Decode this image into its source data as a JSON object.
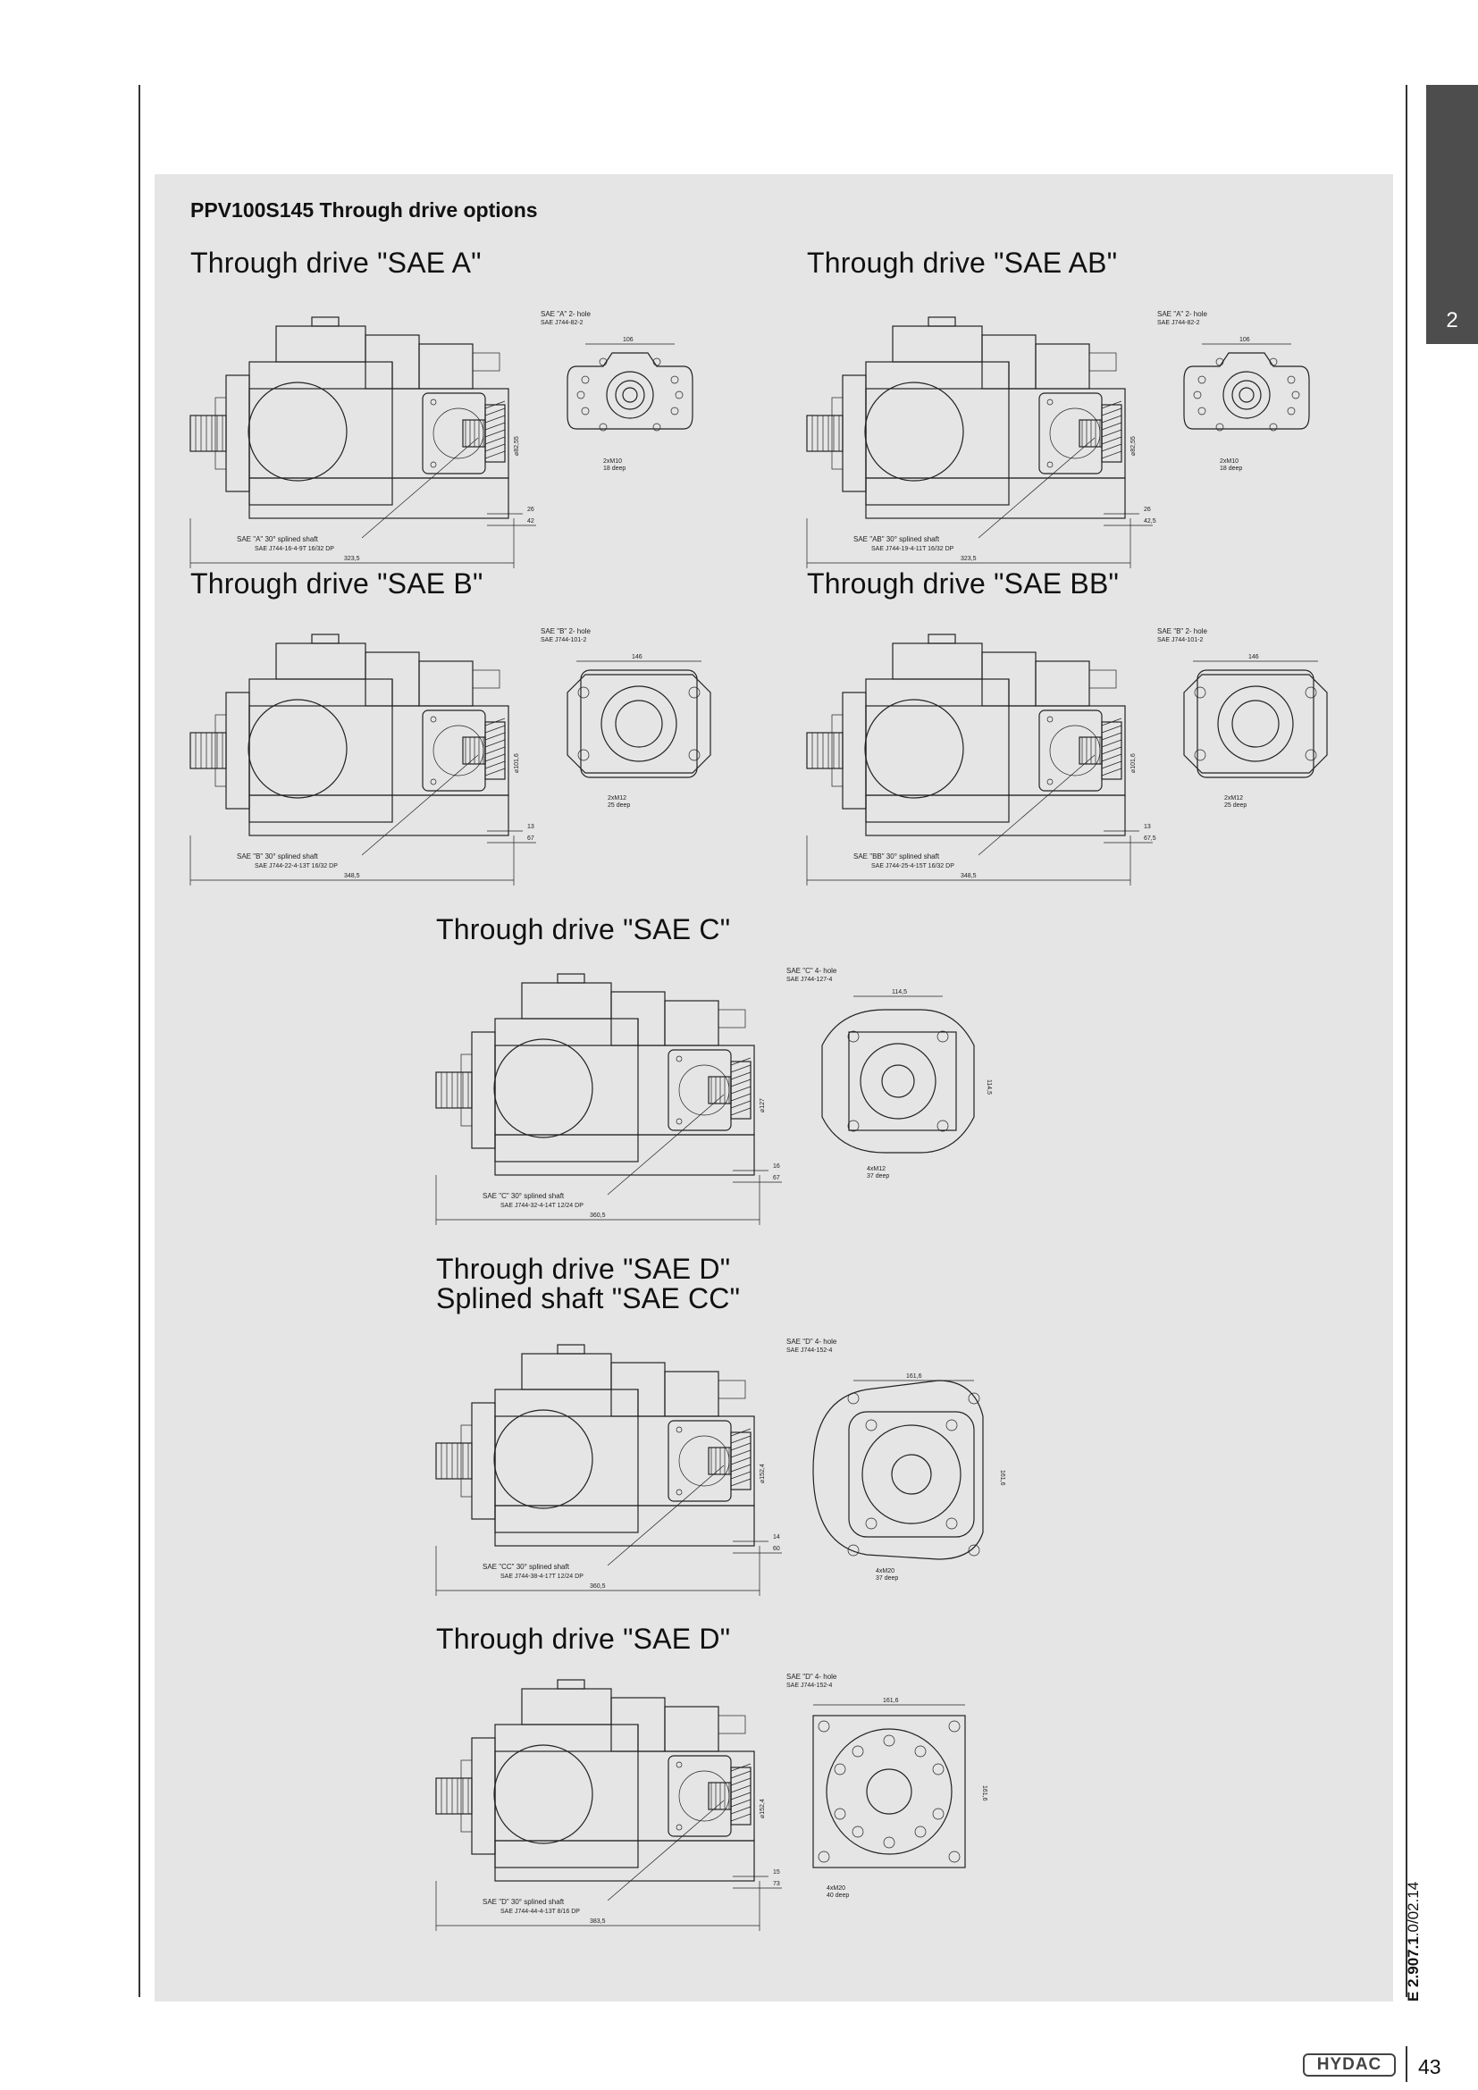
{
  "header": {
    "title": "PPV100S145 Through drive options"
  },
  "side_tab": {
    "chapter": "2"
  },
  "sections": [
    {
      "title": "Through drive \"SAE A\"",
      "hole_label": "SAE \"A\" 2- hole",
      "hole_std": "SAE J744-82-2",
      "flange_width": "106",
      "bolt": "2xM10",
      "bolt_depth": "18 deep",
      "pilot": "⌀82,55",
      "dim1": "26",
      "dim2": "42",
      "shaft_label": "SAE \"A\" 30° splined shaft",
      "shaft_std": "SAE J744-16-4-9T 16/32 DP",
      "overall": "323,5"
    },
    {
      "title": "Through drive \"SAE AB\"",
      "hole_label": "SAE \"A\" 2- hole",
      "hole_std": "SAE J744-82-2",
      "flange_width": "106",
      "bolt": "2xM10",
      "bolt_depth": "18 deep",
      "pilot": "⌀82,55",
      "dim1": "26",
      "dim2": "42,5",
      "shaft_label": "SAE \"AB\" 30° splined shaft",
      "shaft_std": "SAE J744-19-4-11T 16/32 DP",
      "overall": "323,5"
    },
    {
      "title": "Through drive \"SAE B\"",
      "hole_label": "SAE \"B\" 2- hole",
      "hole_std": "SAE J744-101-2",
      "flange_width": "146",
      "bolt": "2xM12",
      "bolt_depth": "25 deep",
      "pilot": "⌀101,6",
      "dim1": "13",
      "dim2": "67",
      "shaft_label": "SAE \"B\" 30° splined shaft",
      "shaft_std": "SAE J744-22-4-13T 16/32 DP",
      "overall": "348,5"
    },
    {
      "title": "Through drive \"SAE BB\"",
      "hole_label": "SAE \"B\" 2- hole",
      "hole_std": "SAE J744-101-2",
      "flange_width": "146",
      "bolt": "2xM12",
      "bolt_depth": "25 deep",
      "pilot": "⌀101,6",
      "dim1": "13",
      "dim2": "67,5",
      "shaft_label": "SAE \"BB\" 30° splined shaft",
      "shaft_std": "SAE J744-25-4-15T 16/32 DP",
      "overall": "348,5"
    },
    {
      "title": "Through drive \"SAE C\"",
      "hole_label": "SAE \"C\" 4- hole",
      "hole_std": "SAE J744-127-4",
      "flange_width": "114,5",
      "flange_height": "114,5",
      "bolt": "4xM12",
      "bolt_depth": "37 deep",
      "pilot": "⌀127",
      "dim1": "16",
      "dim2": "67",
      "shaft_label": "SAE \"C\" 30° splined shaft",
      "shaft_std": "SAE J744-32-4-14T 12/24 DP",
      "overall": "360,5"
    },
    {
      "title": "Through drive \"SAE D\"",
      "title2": "Splined shaft \"SAE CC\"",
      "hole_label": "SAE \"D\" 4- hole",
      "hole_std": "SAE J744-152-4",
      "flange_width": "161,6",
      "flange_height": "161,6",
      "bolt": "4xM20",
      "bolt_depth": "37 deep",
      "pilot": "⌀152,4",
      "dim1": "14",
      "dim2": "60",
      "shaft_label": "SAE \"CC\" 30° splined shaft",
      "shaft_std": "SAE J744-38-4-17T 12/24 DP",
      "overall": "360,5"
    },
    {
      "title": "Through drive \"SAE D\"",
      "hole_label": "SAE \"D\" 4- hole",
      "hole_std": "SAE J744-152-4",
      "flange_width": "161,6",
      "flange_height": "161,6",
      "bolt": "4xM20",
      "bolt_depth": "40 deep",
      "pilot": "⌀152,4",
      "dim1": "15",
      "dim2": "73",
      "shaft_label": "SAE \"D\" 30° splined shaft",
      "shaft_std": "SAE J744-44-4-13T 8/16 DP",
      "overall": "383,5"
    }
  ],
  "footer": {
    "doc_code_bold": "E 2.907.1",
    "doc_code_rest": "0/02.14",
    "logo": "HYDAC",
    "page_number": "43"
  }
}
